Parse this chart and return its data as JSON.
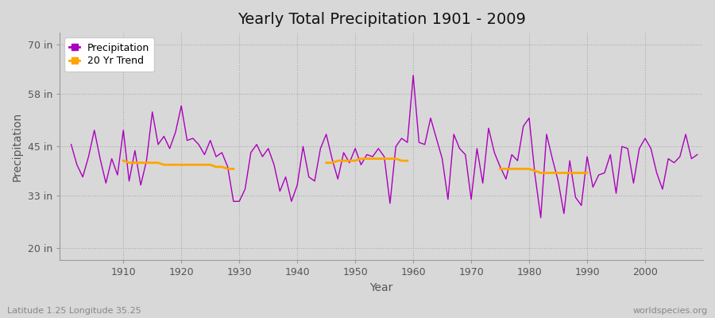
{
  "title": "Yearly Total Precipitation 1901 - 2009",
  "xlabel": "Year",
  "ylabel": "Precipitation",
  "subtitle": "Latitude 1.25 Longitude 35.25",
  "watermark": "worldspecies.org",
  "yticks": [
    20,
    33,
    45,
    58,
    70
  ],
  "ytick_labels": [
    "20 in",
    "33 in",
    "45 in",
    "58 in",
    "70 in"
  ],
  "ylim": [
    17,
    73
  ],
  "xlim": [
    1899,
    2010
  ],
  "bg_color": "#d8d8d8",
  "plot_bg_color": "#d8d8d8",
  "precip_color": "#aa00bb",
  "trend_color": "#FFA500",
  "years": [
    1901,
    1902,
    1903,
    1904,
    1905,
    1906,
    1907,
    1908,
    1909,
    1910,
    1911,
    1912,
    1913,
    1914,
    1915,
    1916,
    1917,
    1918,
    1919,
    1920,
    1921,
    1922,
    1923,
    1924,
    1925,
    1926,
    1927,
    1928,
    1929,
    1930,
    1931,
    1932,
    1933,
    1934,
    1935,
    1936,
    1937,
    1938,
    1939,
    1940,
    1941,
    1942,
    1943,
    1944,
    1945,
    1946,
    1947,
    1948,
    1949,
    1950,
    1951,
    1952,
    1953,
    1954,
    1955,
    1956,
    1957,
    1958,
    1959,
    1960,
    1961,
    1962,
    1963,
    1964,
    1965,
    1966,
    1967,
    1968,
    1969,
    1970,
    1971,
    1972,
    1973,
    1974,
    1975,
    1976,
    1977,
    1978,
    1979,
    1980,
    1981,
    1982,
    1983,
    1984,
    1985,
    1986,
    1987,
    1988,
    1989,
    1990,
    1991,
    1992,
    1993,
    1994,
    1995,
    1996,
    1997,
    1998,
    1999,
    2000,
    2001,
    2002,
    2003,
    2004,
    2005,
    2006,
    2007,
    2008,
    2009
  ],
  "precip": [
    45.5,
    40.5,
    37.5,
    42.5,
    49.0,
    42.0,
    36.0,
    42.0,
    38.0,
    49.0,
    36.5,
    44.0,
    35.5,
    41.5,
    53.5,
    45.5,
    47.5,
    44.5,
    48.5,
    55.0,
    46.5,
    47.0,
    45.5,
    43.0,
    46.5,
    42.5,
    43.5,
    40.0,
    31.5,
    31.5,
    34.5,
    43.5,
    45.5,
    42.5,
    44.5,
    40.5,
    34.0,
    37.5,
    31.5,
    35.5,
    45.0,
    37.5,
    36.5,
    44.5,
    48.0,
    42.0,
    37.0,
    43.5,
    41.0,
    44.5,
    40.5,
    43.0,
    42.5,
    44.5,
    42.5,
    31.0,
    45.0,
    47.0,
    46.0,
    62.5,
    46.0,
    45.5,
    52.0,
    47.0,
    42.0,
    32.0,
    48.0,
    44.5,
    43.0,
    32.0,
    44.5,
    36.0,
    49.5,
    43.5,
    40.0,
    37.0,
    43.0,
    41.5,
    50.0,
    52.0,
    38.0,
    27.5,
    48.0,
    42.0,
    36.5,
    28.5,
    41.5,
    32.5,
    30.5,
    42.5,
    35.0,
    38.0,
    38.5,
    43.0,
    33.5,
    45.0,
    44.5,
    36.0,
    44.5,
    47.0,
    44.5,
    38.5,
    34.5,
    42.0,
    41.0,
    42.5,
    48.0,
    42.0,
    43.0
  ],
  "trend_seg1_years": [
    1910,
    1911,
    1912,
    1913,
    1914,
    1915,
    1916,
    1917,
    1918,
    1919,
    1920,
    1921,
    1922,
    1923,
    1924,
    1925,
    1926,
    1927,
    1928,
    1929
  ],
  "trend_seg1": [
    41.5,
    41.0,
    41.0,
    41.0,
    41.0,
    41.0,
    41.0,
    40.5,
    40.5,
    40.5,
    40.5,
    40.5,
    40.5,
    40.5,
    40.5,
    40.5,
    40.0,
    40.0,
    39.5,
    39.5
  ],
  "trend_seg2_years": [
    1945,
    1946,
    1947,
    1948,
    1949,
    1950,
    1951,
    1952,
    1953,
    1954,
    1955,
    1956,
    1957,
    1958,
    1959
  ],
  "trend_seg2": [
    41.0,
    41.0,
    41.5,
    41.5,
    41.5,
    41.5,
    42.0,
    42.0,
    42.0,
    42.0,
    42.0,
    42.0,
    42.0,
    41.5,
    41.5
  ],
  "trend_seg3_years": [
    1975,
    1976,
    1977,
    1978,
    1979,
    1980,
    1981,
    1982,
    1983,
    1984,
    1985,
    1986,
    1987,
    1988,
    1989,
    1990
  ],
  "trend_seg3": [
    39.5,
    39.5,
    39.5,
    39.5,
    39.5,
    39.5,
    39.0,
    38.5,
    38.5,
    38.5,
    38.5,
    38.5,
    38.5,
    38.5,
    38.5,
    38.5
  ]
}
